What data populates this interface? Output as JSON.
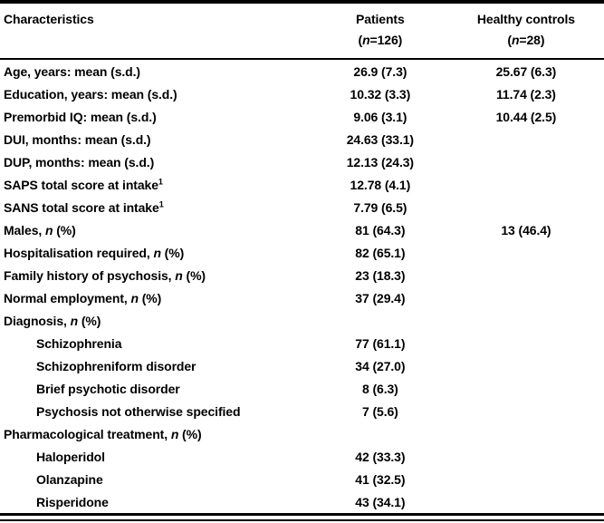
{
  "colors": {
    "text": "#000000",
    "background": "#ffffff",
    "rule": "#000000"
  },
  "table": {
    "header": {
      "characteristics": "Characteristics",
      "patients": {
        "line1": "Patients",
        "n_pre": "(",
        "n_it": "n",
        "n_post": "=126)"
      },
      "controls": {
        "line1": "Healthy controls",
        "n_pre": "(",
        "n_it": "n",
        "n_post": "=28)"
      }
    },
    "rows": [
      {
        "label_pre": "Age, years: mean (s.d.)",
        "label_it": "",
        "label_post": "",
        "label_sup": "",
        "patients": "26.9 (7.3)",
        "controls": "25.67 (6.3)"
      },
      {
        "label_pre": "Education, years: mean (s.d.)",
        "label_it": "",
        "label_post": "",
        "label_sup": "",
        "patients": "10.32 (3.3)",
        "controls": "11.74 (2.3)"
      },
      {
        "label_pre": "Premorbid IQ: mean (s.d.)",
        "label_it": "",
        "label_post": "",
        "label_sup": "",
        "patients": "9.06 (3.1)",
        "controls": "10.44 (2.5)"
      },
      {
        "label_pre": "DUI, months: mean (s.d.)",
        "label_it": "",
        "label_post": "",
        "label_sup": "",
        "patients": "24.63 (33.1)",
        "controls": ""
      },
      {
        "label_pre": "DUP, months: mean (s.d.)",
        "label_it": "",
        "label_post": "",
        "label_sup": "",
        "patients": "12.13 (24.3)",
        "controls": ""
      },
      {
        "label_pre": "SAPS total score at intake",
        "label_it": "",
        "label_post": "",
        "label_sup": "1",
        "patients": "12.78 (4.1)",
        "controls": ""
      },
      {
        "label_pre": "SANS total score at intake",
        "label_it": "",
        "label_post": "",
        "label_sup": "1",
        "patients": "7.79 (6.5)",
        "controls": ""
      },
      {
        "label_pre": "Males, ",
        "label_it": "n",
        "label_post": " (%)",
        "label_sup": "",
        "patients": "81 (64.3)",
        "controls": "13 (46.4)"
      },
      {
        "label_pre": "Hospitalisation required, ",
        "label_it": "n",
        "label_post": " (%)",
        "label_sup": "",
        "patients": "82 (65.1)",
        "controls": ""
      },
      {
        "label_pre": "Family history of psychosis, ",
        "label_it": "n",
        "label_post": " (%)",
        "label_sup": "",
        "patients": "23 (18.3)",
        "controls": ""
      },
      {
        "label_pre": "Normal employment, ",
        "label_it": "n",
        "label_post": " (%)",
        "label_sup": "",
        "patients": "37 (29.4)",
        "controls": ""
      },
      {
        "label_pre": "Diagnosis, ",
        "label_it": "n",
        "label_post": " (%)",
        "label_sup": "",
        "patients": "",
        "controls": ""
      },
      {
        "label_pre": "Schizophrenia",
        "label_it": "",
        "label_post": "",
        "label_sup": "",
        "patients": "77 (61.1)",
        "controls": ""
      },
      {
        "label_pre": "Schizophreniform disorder",
        "label_it": "",
        "label_post": "",
        "label_sup": "",
        "patients": "34 (27.0)",
        "controls": ""
      },
      {
        "label_pre": "Brief psychotic disorder",
        "label_it": "",
        "label_post": "",
        "label_sup": "",
        "patients": "8 (6.3)",
        "controls": ""
      },
      {
        "label_pre": "Psychosis not otherwise specified",
        "label_it": "",
        "label_post": "",
        "label_sup": "",
        "patients": "7 (5.6)",
        "controls": ""
      },
      {
        "label_pre": "Pharmacological treatment, ",
        "label_it": "n",
        "label_post": " (%)",
        "label_sup": "",
        "patients": "",
        "controls": ""
      },
      {
        "label_pre": "Haloperidol",
        "label_it": "",
        "label_post": "",
        "label_sup": "",
        "patients": "42 (33.3)",
        "controls": ""
      },
      {
        "label_pre": "Olanzapine",
        "label_it": "",
        "label_post": "",
        "label_sup": "",
        "patients": "41 (32.5)",
        "controls": ""
      },
      {
        "label_pre": "Risperidone",
        "label_it": "",
        "label_post": "",
        "label_sup": "",
        "patients": "43 (34.1)",
        "controls": ""
      }
    ]
  }
}
